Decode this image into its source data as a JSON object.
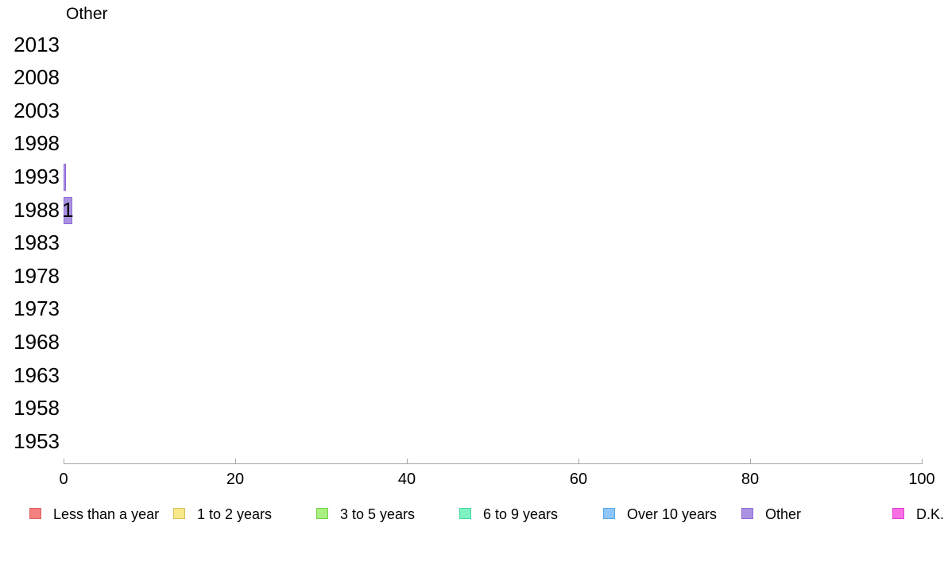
{
  "chart_data": {
    "type": "bar",
    "orientation": "horizontal",
    "title": "Other",
    "categories": [
      "2013",
      "2008",
      "2003",
      "1998",
      "1993",
      "1988",
      "1983",
      "1978",
      "1973",
      "1968",
      "1963",
      "1958",
      "1953"
    ],
    "values": [
      0,
      0,
      0,
      0,
      0.2,
      1,
      0,
      0,
      0,
      0,
      0,
      0,
      0
    ],
    "bar_labels": [
      "",
      "",
      "",
      "",
      "",
      "1",
      "",
      "",
      "",
      "",
      "",
      "",
      ""
    ],
    "xlabel": "",
    "ylabel": "",
    "xlim": [
      0,
      100
    ],
    "xticks": [
      "0",
      "20",
      "40",
      "60",
      "80",
      "100"
    ],
    "grid": false,
    "legend_position": "bottom",
    "colors": {
      "bar_fill": "#aa92e2",
      "bar_border": "#8f6ad8",
      "axis": "#a6a6a6",
      "text": "#000000"
    },
    "legend": [
      {
        "label": "Less than a year",
        "fill": "#f58080",
        "border": "#db6060"
      },
      {
        "label": "1 to 2 years",
        "fill": "#f7e88a",
        "border": "#d2c05e"
      },
      {
        "label": "3 to 5 years",
        "fill": "#a9ef82",
        "border": "#74d148"
      },
      {
        "label": "6 to 9 years",
        "fill": "#7ff2c2",
        "border": "#41d8a1"
      },
      {
        "label": "Over 10 years",
        "fill": "#8ec6f7",
        "border": "#58a7e8"
      },
      {
        "label": "Other",
        "fill": "#aa92e2",
        "border": "#8f6ad8"
      },
      {
        "label": "D.K.",
        "fill": "#f76ee5",
        "border": "#e13fd0"
      }
    ]
  }
}
